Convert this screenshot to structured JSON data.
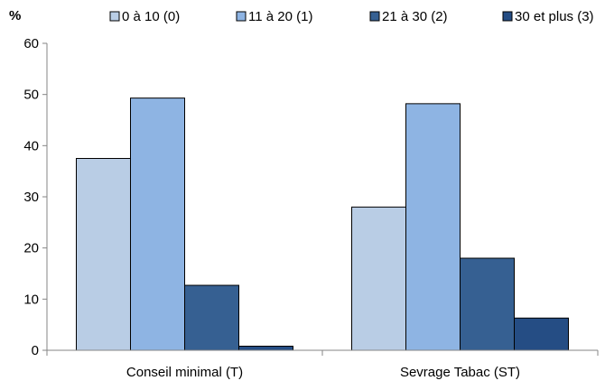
{
  "chart_data": {
    "type": "bar",
    "ylabel": "%",
    "ylim": [
      0,
      60
    ],
    "yticks": [
      "0",
      "10",
      "20",
      "30",
      "40",
      "50",
      "60"
    ],
    "grid": false,
    "legend_position": "top",
    "categories": [
      "Conseil minimal (T)",
      "Sevrage Tabac (ST)"
    ],
    "series": [
      {
        "name": "0 à 10 (0)",
        "color": "#b9cde5",
        "values": [
          37.5,
          28.0
        ]
      },
      {
        "name": "11 à 20 (1)",
        "color": "#8eb4e3",
        "values": [
          49.3,
          48.2
        ]
      },
      {
        "name": "21 à 30 (2)",
        "color": "#366092",
        "values": [
          12.7,
          18.0
        ]
      },
      {
        "name": "30 et plus (3)",
        "color": "#254d84",
        "values": [
          0.8,
          6.3
        ]
      }
    ]
  }
}
